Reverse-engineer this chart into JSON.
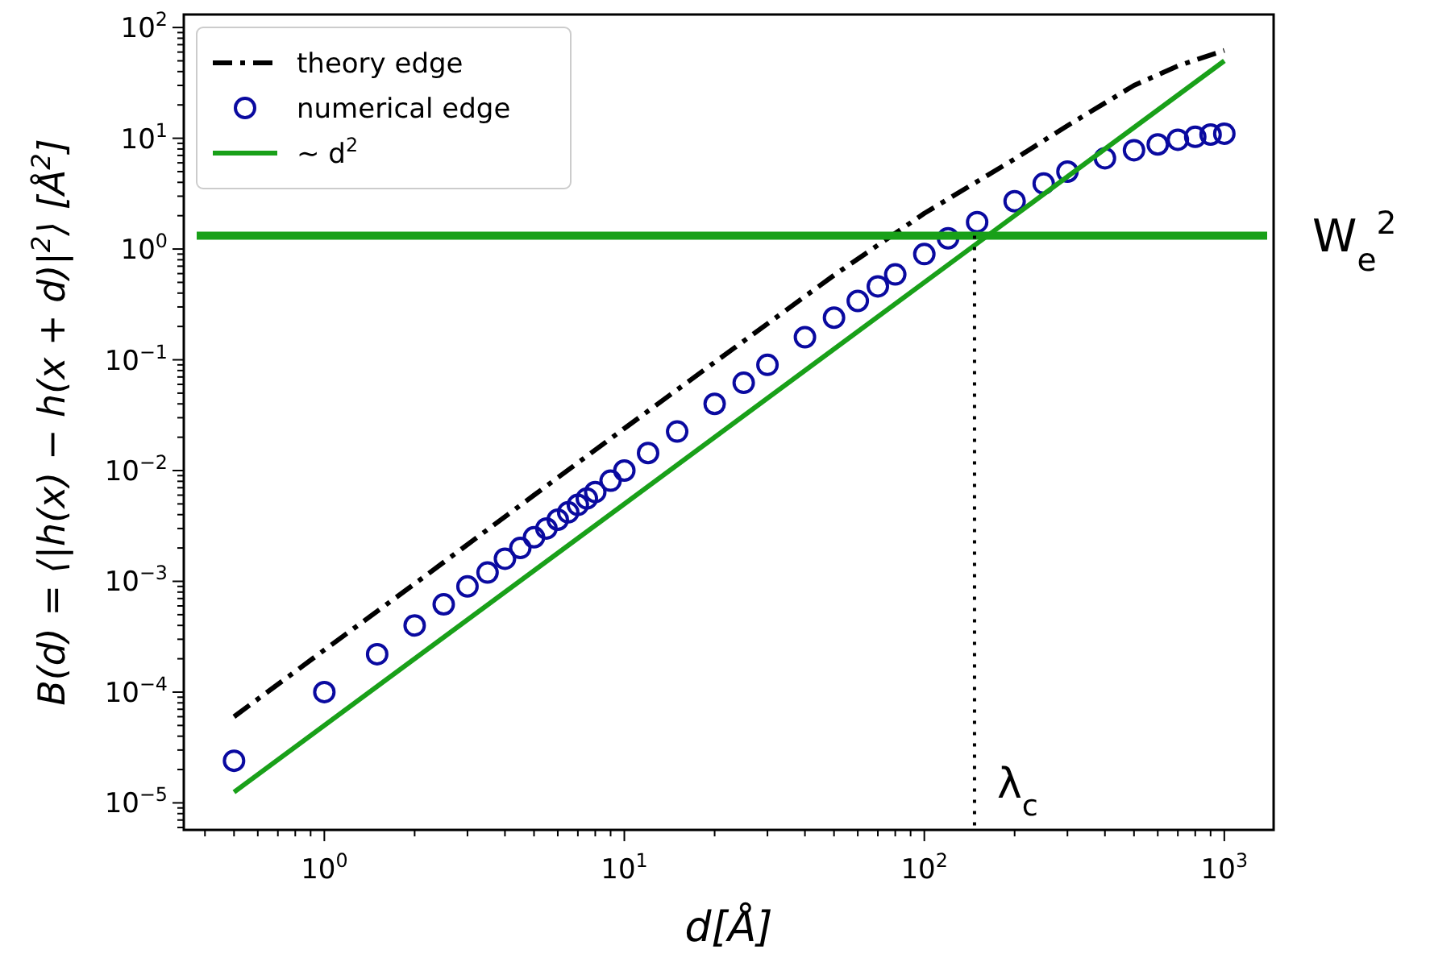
{
  "chart_data": {
    "type": "line",
    "xlabel": "d[Å]",
    "ylabel": "B(d) = ⟨|h(x) − h(x + d)|$^{2}$⟩ [Å$^{2}$]",
    "log": "xy",
    "xlim": [
      0.34,
      1460
    ],
    "ylim": [
      5.7e-06,
      131
    ],
    "xticks": [
      {
        "value": 0.4,
        "label": null
      },
      {
        "value": 0.5,
        "label": null
      },
      {
        "value": 0.6,
        "label": null
      },
      {
        "value": 0.7,
        "label": null
      },
      {
        "value": 0.8,
        "label": null
      },
      {
        "value": 0.9,
        "label": null
      },
      {
        "value": 1,
        "label": "10$^{0}$"
      },
      {
        "value": 2,
        "label": null
      },
      {
        "value": 3,
        "label": null
      },
      {
        "value": 4,
        "label": null
      },
      {
        "value": 5,
        "label": null
      },
      {
        "value": 6,
        "label": null
      },
      {
        "value": 7,
        "label": null
      },
      {
        "value": 8,
        "label": null
      },
      {
        "value": 9,
        "label": null
      },
      {
        "value": 10,
        "label": "10$^{1}$"
      },
      {
        "value": 20,
        "label": null
      },
      {
        "value": 30,
        "label": null
      },
      {
        "value": 40,
        "label": null
      },
      {
        "value": 50,
        "label": null
      },
      {
        "value": 60,
        "label": null
      },
      {
        "value": 70,
        "label": null
      },
      {
        "value": 80,
        "label": null
      },
      {
        "value": 90,
        "label": null
      },
      {
        "value": 100,
        "label": "10$^{2}$"
      },
      {
        "value": 200,
        "label": null
      },
      {
        "value": 300,
        "label": null
      },
      {
        "value": 400,
        "label": null
      },
      {
        "value": 500,
        "label": null
      },
      {
        "value": 600,
        "label": null
      },
      {
        "value": 700,
        "label": null
      },
      {
        "value": 800,
        "label": null
      },
      {
        "value": 900,
        "label": null
      },
      {
        "value": 1000,
        "label": "10$^{3}$"
      }
    ],
    "yticks": [
      {
        "value": 6e-06,
        "label": null
      },
      {
        "value": 7e-06,
        "label": null
      },
      {
        "value": 8e-06,
        "label": null
      },
      {
        "value": 9e-06,
        "label": null
      },
      {
        "value": 1e-05,
        "label": "10$^{−5}$"
      },
      {
        "value": 2e-05,
        "label": null
      },
      {
        "value": 3e-05,
        "label": null
      },
      {
        "value": 4e-05,
        "label": null
      },
      {
        "value": 5e-05,
        "label": null
      },
      {
        "value": 6e-05,
        "label": null
      },
      {
        "value": 7e-05,
        "label": null
      },
      {
        "value": 8e-05,
        "label": null
      },
      {
        "value": 9e-05,
        "label": null
      },
      {
        "value": 0.0001,
        "label": "10$^{−4}$"
      },
      {
        "value": 0.0002,
        "label": null
      },
      {
        "value": 0.0003,
        "label": null
      },
      {
        "value": 0.0004,
        "label": null
      },
      {
        "value": 0.0005,
        "label": null
      },
      {
        "value": 0.0006,
        "label": null
      },
      {
        "value": 0.0007,
        "label": null
      },
      {
        "value": 0.0008,
        "label": null
      },
      {
        "value": 0.0009,
        "label": null
      },
      {
        "value": 0.001,
        "label": "10$^{−3}$"
      },
      {
        "value": 0.002,
        "label": null
      },
      {
        "value": 0.003,
        "label": null
      },
      {
        "value": 0.004,
        "label": null
      },
      {
        "value": 0.005,
        "label": null
      },
      {
        "value": 0.006,
        "label": null
      },
      {
        "value": 0.007,
        "label": null
      },
      {
        "value": 0.008,
        "label": null
      },
      {
        "value": 0.009,
        "label": null
      },
      {
        "value": 0.01,
        "label": "10$^{−2}$"
      },
      {
        "value": 0.02,
        "label": null
      },
      {
        "value": 0.03,
        "label": null
      },
      {
        "value": 0.04,
        "label": null
      },
      {
        "value": 0.05,
        "label": null
      },
      {
        "value": 0.06,
        "label": null
      },
      {
        "value": 0.07,
        "label": null
      },
      {
        "value": 0.08,
        "label": null
      },
      {
        "value": 0.09,
        "label": null
      },
      {
        "value": 0.1,
        "label": "10$^{−1}$"
      },
      {
        "value": 0.2,
        "label": null
      },
      {
        "value": 0.3,
        "label": null
      },
      {
        "value": 0.4,
        "label": null
      },
      {
        "value": 0.5,
        "label": null
      },
      {
        "value": 0.6,
        "label": null
      },
      {
        "value": 0.7,
        "label": null
      },
      {
        "value": 0.8,
        "label": null
      },
      {
        "value": 0.9,
        "label": null
      },
      {
        "value": 1,
        "label": "10$^{0}$"
      },
      {
        "value": 2,
        "label": null
      },
      {
        "value": 3,
        "label": null
      },
      {
        "value": 4,
        "label": null
      },
      {
        "value": 5,
        "label": null
      },
      {
        "value": 6,
        "label": null
      },
      {
        "value": 7,
        "label": null
      },
      {
        "value": 8,
        "label": null
      },
      {
        "value": 9,
        "label": null
      },
      {
        "value": 10,
        "label": "10$^{1}$"
      },
      {
        "value": 20,
        "label": null
      },
      {
        "value": 30,
        "label": null
      },
      {
        "value": 40,
        "label": null
      },
      {
        "value": 50,
        "label": null
      },
      {
        "value": 60,
        "label": null
      },
      {
        "value": 70,
        "label": null
      },
      {
        "value": 80,
        "label": null
      },
      {
        "value": 90,
        "label": null
      },
      {
        "value": 100,
        "label": "10$^{2}$"
      }
    ],
    "grid": false,
    "legend": "top left",
    "series": [
      {
        "name": "theory edge",
        "color": "#000000",
        "line_style": "dashdot",
        "x": [
          0.5,
          1,
          2,
          5,
          10,
          20,
          50,
          100,
          200,
          300,
          500,
          700,
          1000
        ],
        "values": [
          6e-05,
          0.00024,
          0.00095,
          0.006,
          0.024,
          0.095,
          0.58,
          2.1,
          6.5,
          13,
          30,
          45,
          62
        ]
      },
      {
        "name": "numerical edge",
        "type": "scatter",
        "color": "#0a0aa0",
        "marker": "circle",
        "x": [
          0.5,
          1,
          1.5,
          2,
          2.5,
          3,
          3.5,
          4,
          4.5,
          5,
          5.5,
          6,
          6.5,
          7,
          7.5,
          8,
          9,
          10,
          12,
          15,
          20,
          25,
          30,
          40,
          50,
          60,
          70,
          80,
          100,
          120,
          150,
          200,
          250,
          300,
          400,
          500,
          600,
          700,
          800,
          900,
          1000
        ],
        "values": [
          2.4e-05,
          0.0001,
          0.00022,
          0.0004,
          0.00062,
          0.0009,
          0.0012,
          0.0016,
          0.002,
          0.0025,
          0.003,
          0.0036,
          0.0042,
          0.0049,
          0.0056,
          0.0064,
          0.0081,
          0.01,
          0.0144,
          0.0225,
          0.04,
          0.062,
          0.09,
          0.16,
          0.24,
          0.34,
          0.46,
          0.59,
          0.9,
          1.25,
          1.75,
          2.7,
          3.9,
          5.0,
          6.6,
          7.8,
          8.8,
          9.7,
          10.3,
          10.8,
          11
        ]
      },
      {
        "name": "∼ d$^{2}$",
        "color": "#19a019",
        "line_style": "solid",
        "x": [
          0.5,
          1000
        ],
        "values": [
          1.25e-05,
          50
        ]
      }
    ],
    "ref_lines": [
      {
        "axis": "y",
        "value": 1.32,
        "label": "W$_{e}$$^{2}$",
        "color": "#19a019",
        "line_style": "solid"
      },
      {
        "axis": "x",
        "value": 147,
        "label": "λ$_{c}$",
        "color": "#000000",
        "line_style": "dotted"
      }
    ]
  }
}
